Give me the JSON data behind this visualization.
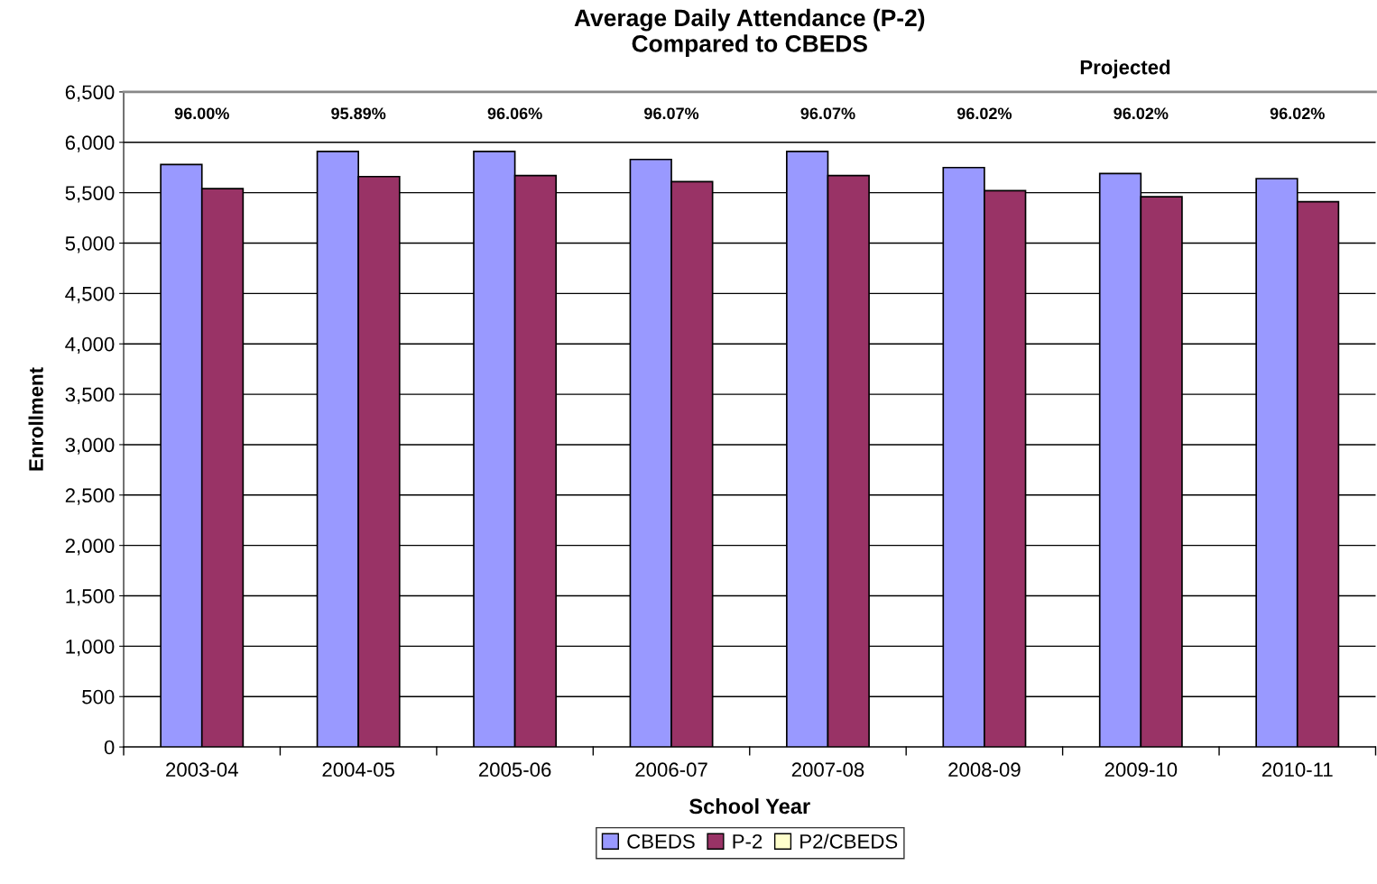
{
  "chart_data": {
    "type": "bar",
    "title": "Average Daily Attendance (P-2)\nCompared to CBEDS",
    "xlabel": "School Year",
    "ylabel": "Enrollment",
    "categories": [
      "2003-04",
      "2004-05",
      "2005-06",
      "2006-07",
      "2007-08",
      "2008-09",
      "2009-10",
      "2010-11"
    ],
    "series": [
      {
        "name": "CBEDS",
        "color": "#9999ff",
        "values": [
          5780,
          5910,
          5910,
          5830,
          5910,
          5750,
          5690,
          5640
        ]
      },
      {
        "name": "P-2",
        "color": "#993366",
        "values": [
          5540,
          5660,
          5670,
          5610,
          5670,
          5520,
          5460,
          5410
        ]
      },
      {
        "name": "P2/CBEDS",
        "type": "line",
        "color": "#ffffcc",
        "values": [
          null,
          null,
          null,
          null,
          null,
          null,
          null,
          null
        ]
      }
    ],
    "annotations": [
      "96.00%",
      "95.89%",
      "96.06%",
      "96.07%",
      "96.07%",
      "96.02%",
      "96.02%",
      "96.02%",
      "Projected"
    ],
    "ylim": [
      0,
      6500
    ],
    "yticks": [
      {
        "value": 0,
        "label": "0"
      },
      {
        "value": 500,
        "label": "500"
      },
      {
        "value": 1000,
        "label": "1,000"
      },
      {
        "value": 1500,
        "label": "1,500"
      },
      {
        "value": 2000,
        "label": "2,000"
      },
      {
        "value": 2500,
        "label": "2,500"
      },
      {
        "value": 3000,
        "label": "3,000"
      },
      {
        "value": 3500,
        "label": "3,500"
      },
      {
        "value": 4000,
        "label": "4,000"
      },
      {
        "value": 4500,
        "label": "4,500"
      },
      {
        "value": 5000,
        "label": "5,000"
      },
      {
        "value": 5500,
        "label": "5,500"
      },
      {
        "value": 6000,
        "label": "6,000"
      },
      {
        "value": 6500,
        "label": "6,500"
      }
    ],
    "grid": "y",
    "legend": "bottom"
  }
}
